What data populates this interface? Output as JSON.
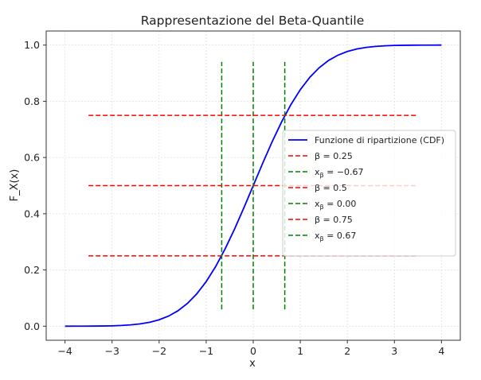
{
  "chart_data": {
    "type": "line",
    "title": "Rappresentazione del Beta-Quantile",
    "xlabel": "x",
    "ylabel": "F_X(x)",
    "xlim": [
      -4.4,
      4.4
    ],
    "ylim": [
      -0.05,
      1.05
    ],
    "xticks": [
      -4,
      -3,
      -2,
      -1,
      0,
      1,
      2,
      3,
      4
    ],
    "xtick_labels": [
      "−4",
      "−3",
      "−2",
      "−1",
      "0",
      "1",
      "2",
      "3",
      "4"
    ],
    "yticks": [
      0.0,
      0.2,
      0.4,
      0.6,
      0.8,
      1.0
    ],
    "ytick_labels": [
      "0.0",
      "0.2",
      "0.4",
      "0.6",
      "0.8",
      "1.0"
    ],
    "grid": true,
    "legend_position": "center-right",
    "series": [
      {
        "name": "Funzione di ripartizione (CDF)",
        "kind": "curve",
        "color": "#0000ff",
        "x": [
          -4.0,
          -3.8,
          -3.6,
          -3.4,
          -3.2,
          -3.0,
          -2.8,
          -2.6,
          -2.4,
          -2.2,
          -2.0,
          -1.8,
          -1.6,
          -1.4,
          -1.2,
          -1.0,
          -0.8,
          -0.6,
          -0.4,
          -0.2,
          0.0,
          0.2,
          0.4,
          0.6,
          0.8,
          1.0,
          1.2,
          1.4,
          1.6,
          1.8,
          2.0,
          2.2,
          2.4,
          2.6,
          2.8,
          3.0,
          3.2,
          3.4,
          3.6,
          3.8,
          4.0
        ],
        "y": [
          0.0,
          0.0001,
          0.0002,
          0.0003,
          0.0007,
          0.0013,
          0.0026,
          0.0047,
          0.0082,
          0.0139,
          0.0228,
          0.0359,
          0.0548,
          0.0808,
          0.1151,
          0.1587,
          0.2119,
          0.2743,
          0.3446,
          0.4207,
          0.5,
          0.5793,
          0.6554,
          0.7257,
          0.7881,
          0.8413,
          0.8849,
          0.9192,
          0.9452,
          0.9641,
          0.9772,
          0.9861,
          0.9918,
          0.9953,
          0.9974,
          0.9987,
          0.9993,
          0.9997,
          0.9998,
          0.9999,
          1.0
        ]
      },
      {
        "name": "β = 0.25",
        "label_main": "β = 0.25",
        "label_sub": "",
        "label_rest": "",
        "kind": "hline",
        "y": 0.25,
        "x": [
          -3.5,
          3.5
        ],
        "color": "#ff0000"
      },
      {
        "name": "xβ = −0.67",
        "label_main": "x",
        "label_sub": "β",
        "label_rest": " = −0.67",
        "kind": "vline",
        "x": -0.67,
        "y": [
          0.06,
          0.94
        ],
        "color": "#008000"
      },
      {
        "name": "β = 0.5",
        "label_main": "β = 0.5",
        "label_sub": "",
        "label_rest": "",
        "kind": "hline",
        "y": 0.5,
        "x": [
          -3.5,
          3.5
        ],
        "color": "#ff0000"
      },
      {
        "name": "xβ = 0.00",
        "label_main": "x",
        "label_sub": "β",
        "label_rest": " = 0.00",
        "kind": "vline",
        "x": 0.0,
        "y": [
          0.06,
          0.94
        ],
        "color": "#008000"
      },
      {
        "name": "β = 0.75",
        "label_main": "β = 0.75",
        "label_sub": "",
        "label_rest": "",
        "kind": "hline",
        "y": 0.75,
        "x": [
          -3.5,
          3.5
        ],
        "color": "#ff0000"
      },
      {
        "name": "xβ = 0.67",
        "label_main": "x",
        "label_sub": "β",
        "label_rest": " = 0.67",
        "kind": "vline",
        "x": 0.67,
        "y": [
          0.06,
          0.94
        ],
        "color": "#008000"
      }
    ]
  }
}
